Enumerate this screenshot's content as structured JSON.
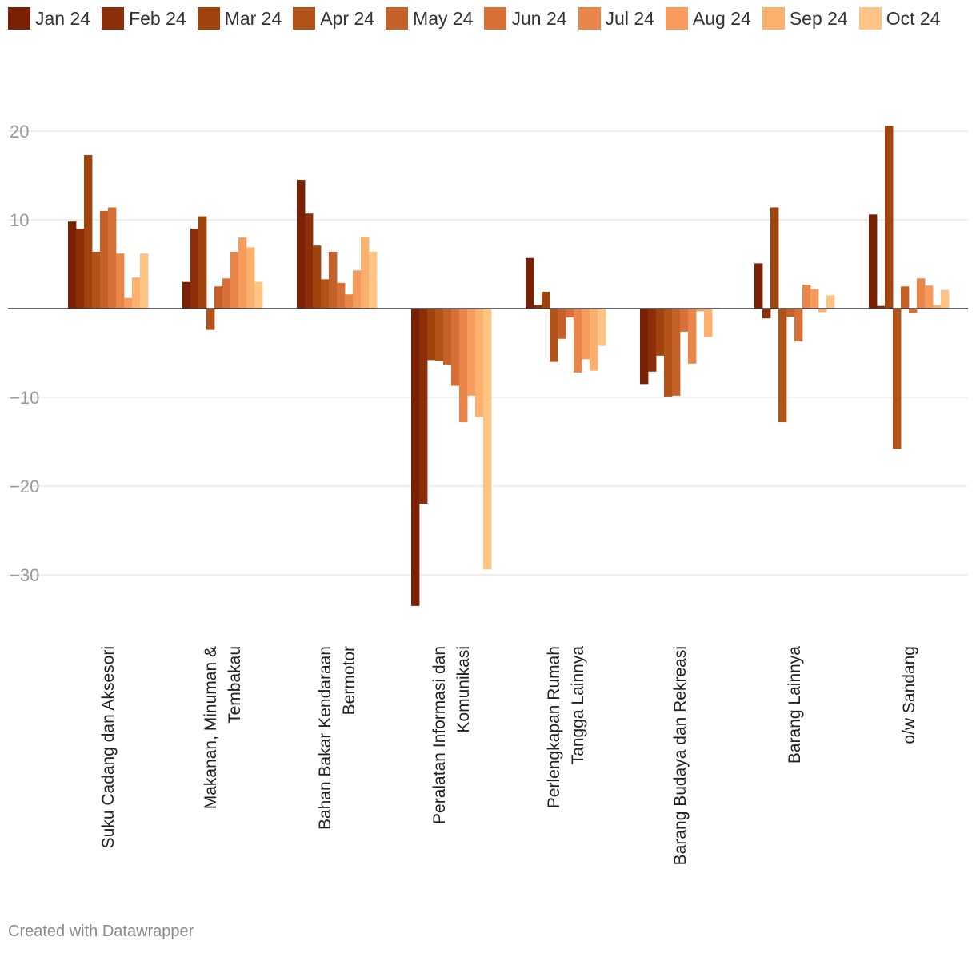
{
  "chart_data": {
    "type": "bar",
    "title": "",
    "xlabel": "",
    "ylabel": "",
    "ylim": [
      -35,
      22
    ],
    "yticks": [
      20,
      10,
      -10,
      -20,
      -30
    ],
    "yticks_labels": [
      "20",
      "10",
      "−10",
      "−20",
      "−30"
    ],
    "grid": true,
    "legend_position": "top",
    "categories": [
      "Suku Cadang dan Aksesori",
      "Makanan, Minuman & Tembakau",
      "Bahan Bakar Kendaraan Bermotor",
      "Peralatan Informasi dan Komunikasi",
      "Perlengkapan Rumah Tangga Lainnya",
      "Barang Budaya dan Rekreasi",
      "Barang Lainnya",
      "o/w Sandang"
    ],
    "category_label_lines": [
      [
        "Suku Cadang dan Aksesori"
      ],
      [
        "Makanan, Minuman &",
        "Tembakau"
      ],
      [
        "Bahan Bakar Kendaraan",
        "Bermotor"
      ],
      [
        "Peralatan Informasi dan",
        "Komunikasi"
      ],
      [
        "Perlengkapan Rumah",
        "Tangga Lainnya"
      ],
      [
        "Barang Budaya dan Rekreasi"
      ],
      [
        "Barang Lainnya"
      ],
      [
        "o/w Sandang"
      ]
    ],
    "series": [
      {
        "name": "Jan 24",
        "color": "#7a2005",
        "values": [
          9.8,
          3.0,
          14.5,
          -33.5,
          5.7,
          -8.5,
          5.1,
          10.6
        ]
      },
      {
        "name": "Feb 24",
        "color": "#8c2e08",
        "values": [
          9.0,
          9.0,
          10.7,
          -22.0,
          0.4,
          -7.1,
          -1.1,
          0.3
        ]
      },
      {
        "name": "Mar 24",
        "color": "#a1430d",
        "values": [
          17.3,
          10.4,
          7.1,
          -5.8,
          1.9,
          -5.3,
          11.4,
          20.6
        ]
      },
      {
        "name": "Apr 24",
        "color": "#b35218",
        "values": [
          6.4,
          -2.4,
          3.3,
          -5.9,
          -6.0,
          -9.9,
          -12.8,
          -15.8
        ]
      },
      {
        "name": "May 24",
        "color": "#c56128",
        "values": [
          11.0,
          2.5,
          6.4,
          -6.3,
          -3.4,
          -9.8,
          -0.9,
          2.5
        ]
      },
      {
        "name": "Jun 24",
        "color": "#d76f37",
        "values": [
          11.4,
          3.4,
          2.9,
          -8.7,
          -1.0,
          -2.6,
          -3.7,
          -0.5
        ]
      },
      {
        "name": "Jul 24",
        "color": "#ea8549",
        "values": [
          6.2,
          6.4,
          1.6,
          -12.8,
          -7.2,
          -6.2,
          2.7,
          3.4
        ]
      },
      {
        "name": "Aug 24",
        "color": "#f79b5c",
        "values": [
          1.2,
          8.0,
          4.3,
          -9.8,
          -5.7,
          -0.3,
          2.2,
          2.6
        ]
      },
      {
        "name": "Sep 24",
        "color": "#fcb06e",
        "values": [
          3.5,
          6.9,
          8.1,
          -12.2,
          -7.0,
          -3.2,
          -0.4,
          0.4
        ]
      },
      {
        "name": "Oct 24",
        "color": "#ffc383",
        "values": [
          6.2,
          3.0,
          6.4,
          -29.4,
          -4.2,
          0.1,
          1.5,
          2.1
        ]
      }
    ]
  },
  "footer": {
    "credit": "Created with Datawrapper"
  }
}
